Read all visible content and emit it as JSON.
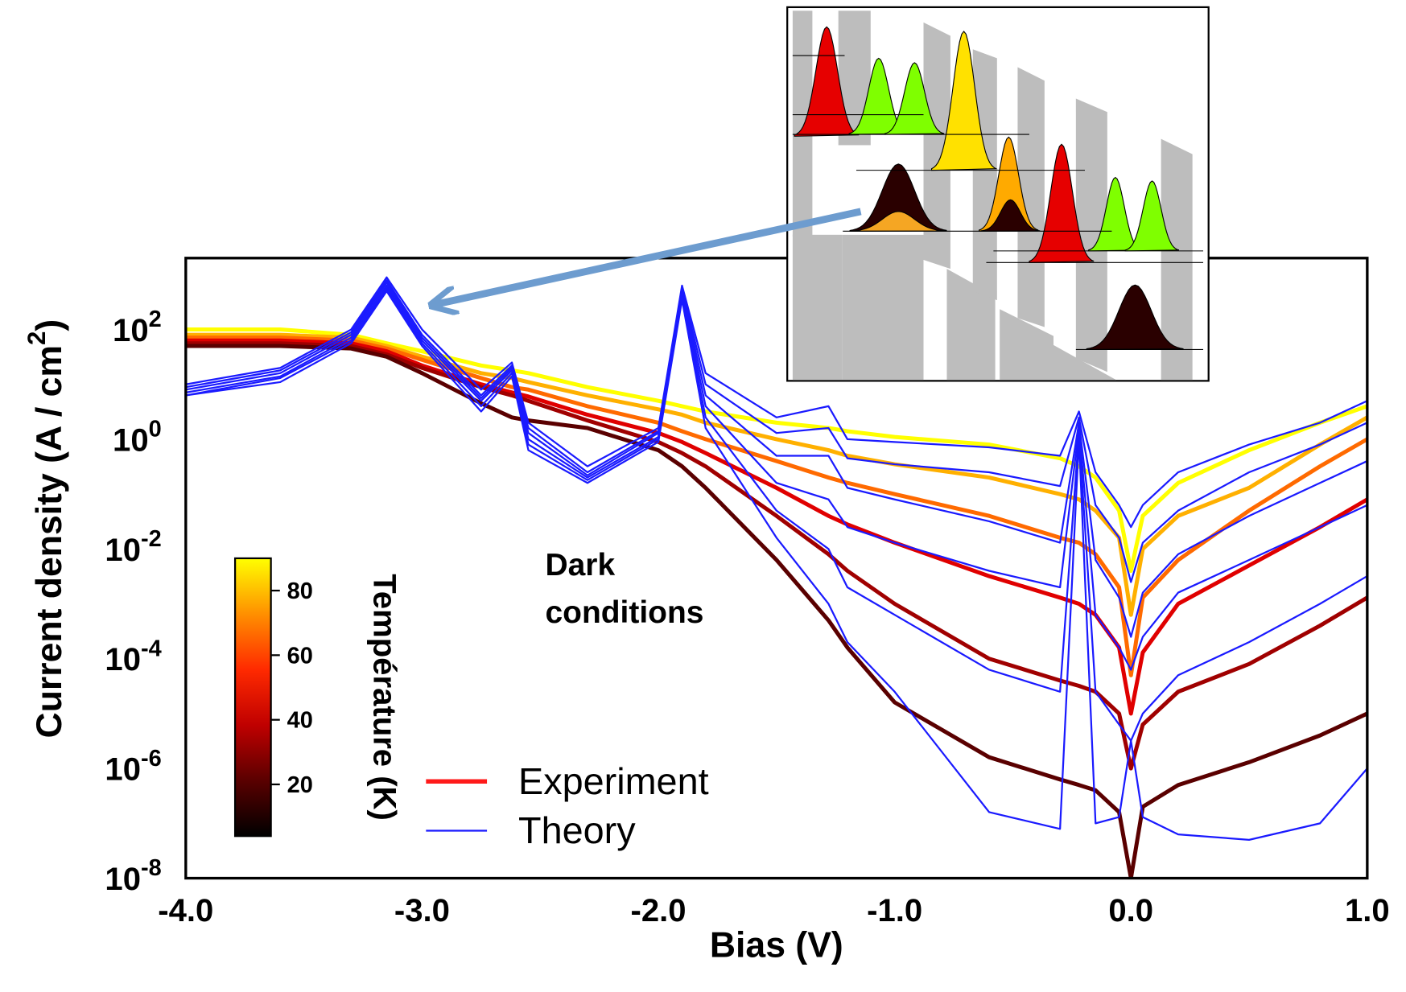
{
  "chart_data": {
    "type": "line",
    "log_y": true,
    "grid": true,
    "xlabel": "Bias  (V)",
    "ylabel": {
      "text": "Current density  (A / cm",
      "sup": "2",
      "end": ")"
    },
    "xlim": [
      -4.0,
      1.0
    ],
    "xticks": [
      {
        "value": -4,
        "label": "-4.0"
      },
      {
        "value": -3,
        "label": "-3.0"
      },
      {
        "value": -2,
        "label": "-2.0"
      },
      {
        "value": -1,
        "label": "-1.0"
      },
      {
        "value": 0,
        "label": "0.0"
      },
      {
        "value": 1,
        "label": "1.0"
      }
    ],
    "xminor": [
      -3.5,
      -2.5,
      -1.5,
      -0.5,
      0.5
    ],
    "ylim": [
      1e-08,
      2000
    ],
    "yticks": [
      {
        "value": 1e-08,
        "label": "10",
        "exponent": "-8"
      },
      {
        "value": 1e-06,
        "label": "10",
        "exponent": "-6"
      },
      {
        "value": 0.0001,
        "label": "10",
        "exponent": "-4"
      },
      {
        "value": 0.01,
        "label": "10",
        "exponent": "-2"
      },
      {
        "value": 1,
        "label": "10",
        "exponent": "0"
      },
      {
        "value": 100,
        "label": "10",
        "exponent": "2"
      }
    ],
    "yminor": [
      1e-07,
      1e-05,
      0.001,
      0.1,
      10,
      1000
    ],
    "x": [
      -4.0,
      -3.6,
      -3.3,
      -3.15,
      -3.0,
      -2.75,
      -2.62,
      -2.55,
      -2.3,
      -2.0,
      -1.9,
      -1.8,
      -1.5,
      -1.28,
      -1.2,
      -1.0,
      -0.6,
      -0.3,
      -0.22,
      -0.15,
      -0.05,
      0.0,
      0.05,
      0.2,
      0.5,
      0.8,
      1.0
    ],
    "experiment": {
      "name": "Experiment",
      "color": "#ff1a1a",
      "series": [
        {
          "color": "#ffff00",
          "values": [
            100,
            100,
            80,
            56,
            40,
            22,
            18,
            16,
            8.9,
            5,
            4,
            3.2,
            2,
            1.6,
            1.4,
            1.1,
            0.8,
            0.45,
            0.32,
            0.2,
            0.05,
            0.004,
            0.04,
            0.16,
            0.63,
            2,
            4
          ]
        },
        {
          "color": "#ffb000",
          "values": [
            80,
            80,
            71,
            50,
            32,
            16,
            13,
            11,
            6.3,
            3.5,
            2.8,
            2,
            1,
            0.63,
            0.5,
            0.35,
            0.2,
            0.1,
            0.08,
            0.05,
            0.016,
            0.00063,
            0.01,
            0.04,
            0.13,
            0.8,
            2.5
          ]
        },
        {
          "color": "#ff6a00",
          "values": [
            71,
            71,
            63,
            45,
            28,
            13,
            8.9,
            8,
            4,
            2,
            1.4,
            1,
            0.4,
            0.2,
            0.16,
            0.1,
            0.04,
            0.016,
            0.013,
            0.008,
            0.002,
            5e-05,
            0.0013,
            0.0063,
            0.05,
            0.32,
            1
          ]
        },
        {
          "color": "#e00000",
          "values": [
            63,
            63,
            56,
            40,
            22,
            10,
            7.1,
            6,
            2.8,
            1.3,
            0.89,
            0.56,
            0.13,
            0.04,
            0.028,
            0.013,
            0.0032,
            0.0013,
            0.001,
            0.00063,
            0.00016,
            1e-05,
            0.00013,
            0.001,
            0.005,
            0.025,
            0.08
          ]
        },
        {
          "color": "#a00000",
          "values": [
            56,
            56,
            50,
            35,
            20,
            8.9,
            6.3,
            5,
            2.2,
            0.89,
            0.56,
            0.32,
            0.04,
            0.008,
            0.004,
            0.001,
            0.0001,
            4e-05,
            3.2e-05,
            2.5e-05,
            1e-05,
            1e-06,
            6.3e-06,
            2.5e-05,
            8e-05,
            0.0004,
            0.0013
          ]
        },
        {
          "color": "#5a0000",
          "values": [
            50,
            50,
            45,
            32,
            16,
            4.5,
            2.5,
            2.2,
            1.6,
            0.63,
            0.32,
            0.13,
            0.0063,
            0.0005,
            0.00016,
            1.6e-05,
            1.6e-06,
            6.3e-07,
            5e-07,
            4e-07,
            1.6e-07,
            1e-08,
            2e-07,
            5e-07,
            1.3e-06,
            4e-06,
            1e-05
          ]
        }
      ]
    },
    "theory": {
      "name": "Theory",
      "color": "#1a1aff",
      "series": [
        {
          "values": [
            10,
            20,
            100,
            890,
            100,
            8,
            25,
            2,
            0.32,
            1.6,
            630,
            16,
            2.5,
            4,
            1,
            0.89,
            0.71,
            0.5,
            3.2,
            0.25,
            0.063,
            0.025,
            0.063,
            0.25,
            0.8,
            2,
            5
          ]
        },
        {
          "values": [
            8.9,
            18,
            89,
            790,
            80,
            6.3,
            22,
            1.6,
            0.25,
            1.4,
            560,
            10,
            1.3,
            1.6,
            0.45,
            0.35,
            0.25,
            0.14,
            2.5,
            0.063,
            0.016,
            0.0025,
            0.013,
            0.05,
            0.25,
            0.8,
            2
          ]
        },
        {
          "values": [
            8,
            16,
            80,
            710,
            71,
            5.6,
            20,
            1.3,
            0.22,
            1.3,
            500,
            6.3,
            0.5,
            0.5,
            0.13,
            0.08,
            0.032,
            0.013,
            2,
            0.0063,
            0.0013,
            0.00025,
            0.0016,
            0.008,
            0.04,
            0.16,
            0.4
          ]
        },
        {
          "values": [
            7.1,
            14,
            71,
            630,
            63,
            5,
            18,
            1,
            0.2,
            1.1,
            450,
            4,
            0.16,
            0.08,
            0.025,
            0.013,
            0.004,
            0.002,
            1.6,
            0.00063,
            0.00016,
            6.3e-05,
            0.00025,
            0.0016,
            0.0063,
            0.025,
            0.063
          ]
        },
        {
          "values": [
            6.3,
            13,
            63,
            560,
            56,
            4,
            16,
            0.8,
            0.18,
            1,
            400,
            2.5,
            0.05,
            0.01,
            0.002,
            0.00063,
            6.3e-05,
            2.5e-05,
            1.3,
            2.5e-05,
            6.3e-06,
            3.2e-06,
            1e-05,
            5e-05,
            0.0002,
            0.001,
            0.0032
          ]
        },
        {
          "values": [
            6.3,
            11,
            56,
            500,
            50,
            3.2,
            14,
            0.63,
            0.16,
            0.89,
            350,
            1.6,
            0.016,
            0.001,
            0.0002,
            2.5e-05,
            1.6e-07,
            7.9e-08,
            1,
            1e-07,
            1.3e-07,
            3.2e-06,
            1.3e-07,
            6.3e-08,
            5e-08,
            1e-07,
            1e-06
          ]
        }
      ]
    },
    "annotation": [
      "Dark",
      "conditions"
    ],
    "colorbar": {
      "label": "Température (K)",
      "lim": [
        4,
        90
      ],
      "ticks": [
        20,
        40,
        60,
        80
      ],
      "colors": [
        "#000000",
        "#5a0000",
        "#c00000",
        "#ff2a00",
        "#ff9000",
        "#ffff00"
      ]
    }
  }
}
